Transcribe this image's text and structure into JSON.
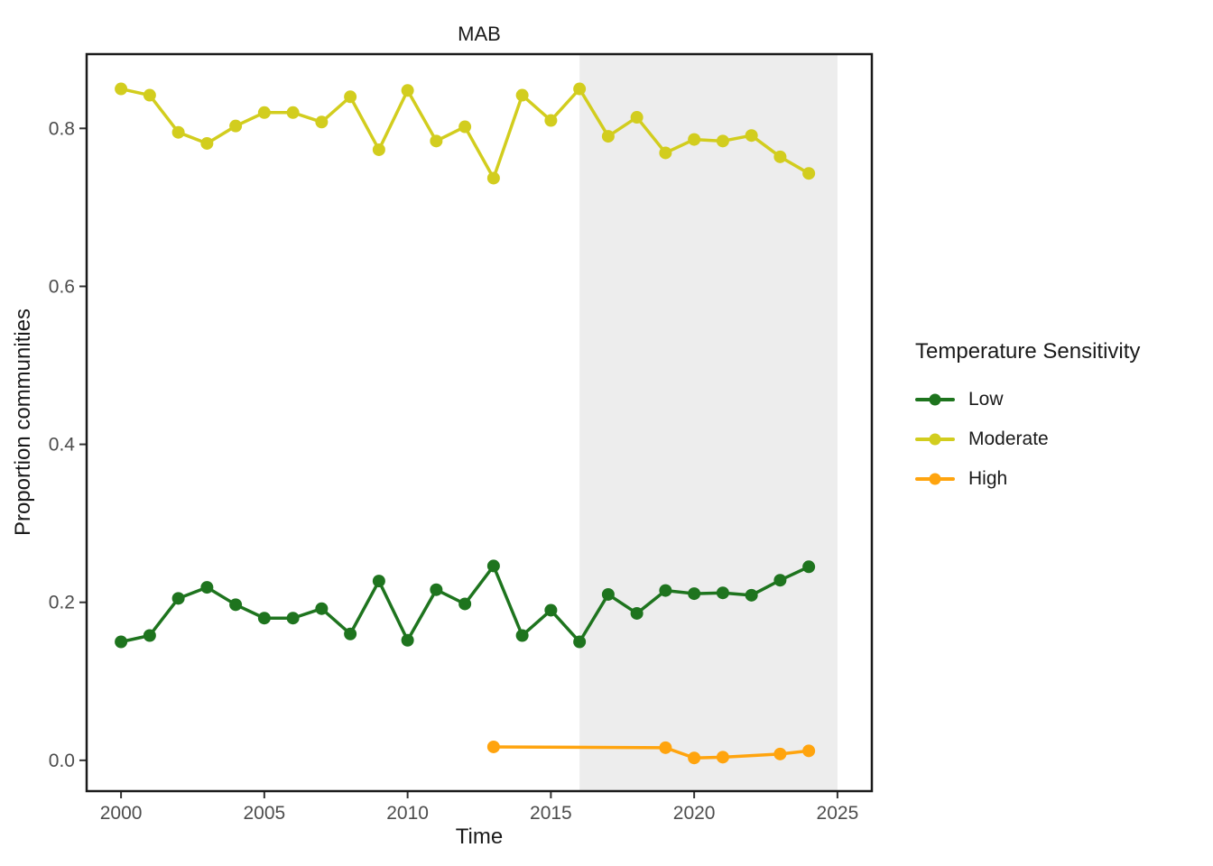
{
  "chart_data": {
    "type": "line",
    "title": "MAB",
    "xlabel": "Time",
    "ylabel": "Proportion communities",
    "legend_title": "Temperature Sensitivity",
    "legend_position": "right",
    "grid": false,
    "xlim": [
      1998.8,
      2026.2
    ],
    "ylim": [
      -0.039,
      0.894
    ],
    "x_ticks": [
      2000,
      2005,
      2010,
      2015,
      2020,
      2025
    ],
    "x_tick_labels": [
      "2000",
      "2005",
      "2010",
      "2015",
      "2020",
      "2025"
    ],
    "y_ticks": [
      0.0,
      0.2,
      0.4,
      0.6,
      0.8
    ],
    "y_tick_labels": [
      "0.0",
      "0.2",
      "0.4",
      "0.6",
      "0.8"
    ],
    "shaded_region": {
      "x_start": 2016,
      "x_end": 2025,
      "color": "#ededed"
    },
    "series": [
      {
        "name": "Low",
        "color": "#1e741e",
        "x": [
          2000,
          2001,
          2002,
          2003,
          2004,
          2005,
          2006,
          2007,
          2008,
          2009,
          2010,
          2011,
          2012,
          2013,
          2014,
          2015,
          2016,
          2017,
          2018,
          2019,
          2020,
          2021,
          2022,
          2023,
          2024
        ],
        "y": [
          0.15,
          0.158,
          0.205,
          0.219,
          0.197,
          0.18,
          0.18,
          0.192,
          0.16,
          0.227,
          0.152,
          0.216,
          0.198,
          0.246,
          0.158,
          0.19,
          0.15,
          0.21,
          0.186,
          0.215,
          0.211,
          0.212,
          0.209,
          0.228,
          0.245
        ]
      },
      {
        "name": "Moderate",
        "color": "#d2cd1e",
        "x": [
          2000,
          2001,
          2002,
          2003,
          2004,
          2005,
          2006,
          2007,
          2008,
          2009,
          2010,
          2011,
          2012,
          2013,
          2014,
          2015,
          2016,
          2017,
          2018,
          2019,
          2020,
          2021,
          2022,
          2023,
          2024
        ],
        "y": [
          0.85,
          0.842,
          0.795,
          0.781,
          0.803,
          0.82,
          0.82,
          0.808,
          0.84,
          0.773,
          0.848,
          0.784,
          0.802,
          0.737,
          0.842,
          0.81,
          0.85,
          0.79,
          0.814,
          0.769,
          0.786,
          0.784,
          0.791,
          0.764,
          0.743
        ]
      },
      {
        "name": "High",
        "color": "#ffa40e",
        "x": [
          2013,
          2019,
          2020,
          2021,
          2023,
          2024
        ],
        "y": [
          0.017,
          0.016,
          0.003,
          0.004,
          0.008,
          0.012
        ]
      }
    ]
  }
}
